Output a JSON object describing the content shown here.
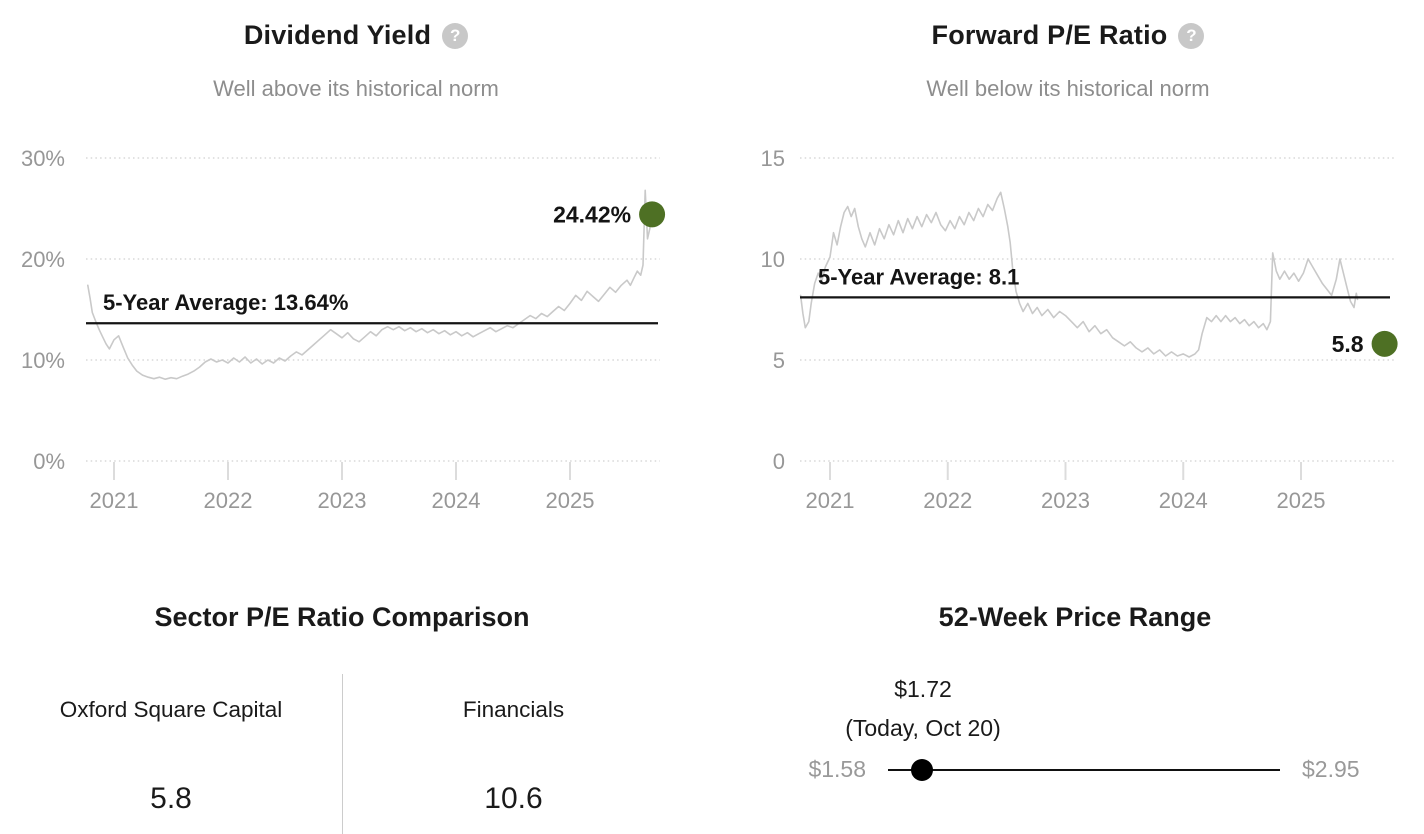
{
  "ui": {
    "help_glyph": "?"
  },
  "colors": {
    "accent_green": "#4e7024",
    "series_gray": "#c9c9c9",
    "axis_gray": "#979797",
    "average_line": "#141414"
  },
  "chart_data": [
    {
      "type": "line",
      "title": "Dividend Yield",
      "subtitle": "Well above its historical norm",
      "unit": "%",
      "x_ticks": [
        2021,
        2022,
        2023,
        2024,
        2025
      ],
      "y_ticks": [
        {
          "value": 30,
          "label": "30%"
        },
        {
          "value": 20,
          "label": "20%"
        },
        {
          "value": 10,
          "label": "10%"
        },
        {
          "value": 0,
          "label": "0%"
        }
      ],
      "y_range": [
        0,
        33
      ],
      "grid": true,
      "legend": "none",
      "average": {
        "value": 13.64,
        "label": "5-Year Average: 13.64%"
      },
      "current": {
        "x": 2025.72,
        "value": 24.42,
        "label": "24.42%"
      },
      "line_color": "#c9c9c9",
      "dot_color": "#4e7024",
      "series": [
        [
          2020.77,
          17.4
        ],
        [
          2020.79,
          16.1
        ],
        [
          2020.81,
          14.7
        ],
        [
          2020.84,
          13.8
        ],
        [
          2020.87,
          13.0
        ],
        [
          2020.9,
          12.3
        ],
        [
          2020.93,
          11.6
        ],
        [
          2020.96,
          11.1
        ],
        [
          2021.0,
          12.0
        ],
        [
          2021.04,
          12.4
        ],
        [
          2021.08,
          11.3
        ],
        [
          2021.12,
          10.2
        ],
        [
          2021.16,
          9.5
        ],
        [
          2021.2,
          8.9
        ],
        [
          2021.25,
          8.5
        ],
        [
          2021.3,
          8.3
        ],
        [
          2021.35,
          8.15
        ],
        [
          2021.4,
          8.3
        ],
        [
          2021.45,
          8.1
        ],
        [
          2021.5,
          8.25
        ],
        [
          2021.55,
          8.15
        ],
        [
          2021.6,
          8.4
        ],
        [
          2021.65,
          8.6
        ],
        [
          2021.7,
          8.9
        ],
        [
          2021.75,
          9.3
        ],
        [
          2021.8,
          9.8
        ],
        [
          2021.85,
          10.1
        ],
        [
          2021.9,
          9.8
        ],
        [
          2021.95,
          10.0
        ],
        [
          2022.0,
          9.7
        ],
        [
          2022.05,
          10.2
        ],
        [
          2022.1,
          9.8
        ],
        [
          2022.15,
          10.3
        ],
        [
          2022.2,
          9.7
        ],
        [
          2022.25,
          10.1
        ],
        [
          2022.3,
          9.6
        ],
        [
          2022.35,
          10.0
        ],
        [
          2022.4,
          9.7
        ],
        [
          2022.45,
          10.2
        ],
        [
          2022.5,
          9.9
        ],
        [
          2022.55,
          10.4
        ],
        [
          2022.6,
          10.8
        ],
        [
          2022.65,
          10.5
        ],
        [
          2022.7,
          11.0
        ],
        [
          2022.75,
          11.5
        ],
        [
          2022.8,
          12.0
        ],
        [
          2022.85,
          12.5
        ],
        [
          2022.9,
          13.0
        ],
        [
          2022.95,
          12.6
        ],
        [
          2023.0,
          12.2
        ],
        [
          2023.05,
          12.7
        ],
        [
          2023.1,
          12.1
        ],
        [
          2023.15,
          11.8
        ],
        [
          2023.2,
          12.3
        ],
        [
          2023.25,
          12.8
        ],
        [
          2023.3,
          12.4
        ],
        [
          2023.35,
          13.0
        ],
        [
          2023.4,
          13.3
        ],
        [
          2023.45,
          13.0
        ],
        [
          2023.5,
          13.3
        ],
        [
          2023.55,
          12.9
        ],
        [
          2023.6,
          13.2
        ],
        [
          2023.65,
          12.8
        ],
        [
          2023.7,
          13.1
        ],
        [
          2023.75,
          12.7
        ],
        [
          2023.8,
          13.0
        ],
        [
          2023.85,
          12.6
        ],
        [
          2023.9,
          12.9
        ],
        [
          2023.95,
          12.5
        ],
        [
          2024.0,
          12.8
        ],
        [
          2024.05,
          12.4
        ],
        [
          2024.1,
          12.7
        ],
        [
          2024.15,
          12.3
        ],
        [
          2024.2,
          12.6
        ],
        [
          2024.25,
          12.9
        ],
        [
          2024.3,
          13.2
        ],
        [
          2024.35,
          12.8
        ],
        [
          2024.4,
          13.1
        ],
        [
          2024.45,
          13.4
        ],
        [
          2024.5,
          13.2
        ],
        [
          2024.55,
          13.6
        ],
        [
          2024.6,
          14.0
        ],
        [
          2024.65,
          14.4
        ],
        [
          2024.7,
          14.1
        ],
        [
          2024.75,
          14.6
        ],
        [
          2024.8,
          14.3
        ],
        [
          2024.85,
          14.8
        ],
        [
          2024.9,
          15.3
        ],
        [
          2024.95,
          14.9
        ],
        [
          2025.0,
          15.6
        ],
        [
          2025.05,
          16.4
        ],
        [
          2025.1,
          15.9
        ],
        [
          2025.15,
          16.8
        ],
        [
          2025.2,
          16.3
        ],
        [
          2025.25,
          15.8
        ],
        [
          2025.3,
          16.5
        ],
        [
          2025.35,
          17.2
        ],
        [
          2025.4,
          16.7
        ],
        [
          2025.45,
          17.4
        ],
        [
          2025.5,
          17.9
        ],
        [
          2025.53,
          17.4
        ],
        [
          2025.56,
          18.1
        ],
        [
          2025.59,
          18.8
        ],
        [
          2025.62,
          18.4
        ],
        [
          2025.64,
          19.4
        ],
        [
          2025.66,
          26.8
        ],
        [
          2025.68,
          22.0
        ],
        [
          2025.7,
          23.0
        ],
        [
          2025.72,
          24.42
        ]
      ]
    },
    {
      "type": "line",
      "title": "Forward P/E Ratio",
      "subtitle": "Well below its historical norm",
      "unit": "",
      "x_ticks": [
        2021,
        2022,
        2023,
        2024,
        2025
      ],
      "y_ticks": [
        {
          "value": 15,
          "label": "15"
        },
        {
          "value": 10,
          "label": "10"
        },
        {
          "value": 5,
          "label": "5"
        },
        {
          "value": 0,
          "label": "0"
        }
      ],
      "y_range": [
        0,
        15
      ],
      "grid": true,
      "legend": "none",
      "average": {
        "value": 8.1,
        "label": "5-Year Average: 8.1"
      },
      "current": {
        "x": 2025.71,
        "value": 5.8,
        "label": "5.8"
      },
      "line_color": "#c9c9c9",
      "dot_color": "#4e7024",
      "series": [
        [
          2020.75,
          8.2
        ],
        [
          2020.77,
          7.3
        ],
        [
          2020.79,
          6.6
        ],
        [
          2020.82,
          6.9
        ],
        [
          2020.84,
          7.8
        ],
        [
          2020.87,
          8.8
        ],
        [
          2020.9,
          9.3
        ],
        [
          2020.93,
          8.9
        ],
        [
          2020.96,
          9.6
        ],
        [
          2021.0,
          10.1
        ],
        [
          2021.03,
          11.3
        ],
        [
          2021.06,
          10.7
        ],
        [
          2021.09,
          11.6
        ],
        [
          2021.12,
          12.3
        ],
        [
          2021.15,
          12.6
        ],
        [
          2021.18,
          12.1
        ],
        [
          2021.21,
          12.5
        ],
        [
          2021.24,
          11.6
        ],
        [
          2021.27,
          11.0
        ],
        [
          2021.3,
          10.6
        ],
        [
          2021.34,
          11.3
        ],
        [
          2021.38,
          10.7
        ],
        [
          2021.42,
          11.5
        ],
        [
          2021.46,
          11.0
        ],
        [
          2021.5,
          11.7
        ],
        [
          2021.54,
          11.2
        ],
        [
          2021.58,
          11.9
        ],
        [
          2021.62,
          11.3
        ],
        [
          2021.66,
          12.0
        ],
        [
          2021.7,
          11.5
        ],
        [
          2021.74,
          12.1
        ],
        [
          2021.78,
          11.6
        ],
        [
          2021.82,
          12.2
        ],
        [
          2021.86,
          11.8
        ],
        [
          2021.9,
          12.3
        ],
        [
          2021.94,
          11.7
        ],
        [
          2021.98,
          11.4
        ],
        [
          2022.02,
          11.9
        ],
        [
          2022.06,
          11.5
        ],
        [
          2022.1,
          12.1
        ],
        [
          2022.14,
          11.7
        ],
        [
          2022.18,
          12.3
        ],
        [
          2022.22,
          11.9
        ],
        [
          2022.26,
          12.5
        ],
        [
          2022.3,
          12.1
        ],
        [
          2022.34,
          12.7
        ],
        [
          2022.38,
          12.4
        ],
        [
          2022.42,
          13.0
        ],
        [
          2022.45,
          13.3
        ],
        [
          2022.48,
          12.5
        ],
        [
          2022.51,
          11.6
        ],
        [
          2022.53,
          10.8
        ],
        [
          2022.55,
          9.6
        ],
        [
          2022.58,
          8.4
        ],
        [
          2022.61,
          7.8
        ],
        [
          2022.64,
          7.4
        ],
        [
          2022.68,
          7.8
        ],
        [
          2022.72,
          7.3
        ],
        [
          2022.76,
          7.6
        ],
        [
          2022.8,
          7.2
        ],
        [
          2022.85,
          7.5
        ],
        [
          2022.9,
          7.1
        ],
        [
          2022.95,
          7.4
        ],
        [
          2023.0,
          7.2
        ],
        [
          2023.05,
          6.9
        ],
        [
          2023.1,
          6.6
        ],
        [
          2023.15,
          6.9
        ],
        [
          2023.2,
          6.4
        ],
        [
          2023.25,
          6.7
        ],
        [
          2023.3,
          6.3
        ],
        [
          2023.35,
          6.5
        ],
        [
          2023.4,
          6.1
        ],
        [
          2023.45,
          5.9
        ],
        [
          2023.5,
          5.7
        ],
        [
          2023.55,
          5.9
        ],
        [
          2023.6,
          5.6
        ],
        [
          2023.65,
          5.4
        ],
        [
          2023.7,
          5.6
        ],
        [
          2023.75,
          5.3
        ],
        [
          2023.8,
          5.5
        ],
        [
          2023.85,
          5.2
        ],
        [
          2023.9,
          5.4
        ],
        [
          2023.95,
          5.2
        ],
        [
          2024.0,
          5.3
        ],
        [
          2024.05,
          5.15
        ],
        [
          2024.1,
          5.3
        ],
        [
          2024.13,
          5.5
        ],
        [
          2024.16,
          6.3
        ],
        [
          2024.2,
          7.1
        ],
        [
          2024.24,
          6.9
        ],
        [
          2024.28,
          7.2
        ],
        [
          2024.32,
          6.9
        ],
        [
          2024.36,
          7.2
        ],
        [
          2024.4,
          6.9
        ],
        [
          2024.44,
          7.1
        ],
        [
          2024.48,
          6.8
        ],
        [
          2024.52,
          7.0
        ],
        [
          2024.56,
          6.7
        ],
        [
          2024.6,
          6.9
        ],
        [
          2024.64,
          6.6
        ],
        [
          2024.68,
          6.8
        ],
        [
          2024.71,
          6.5
        ],
        [
          2024.74,
          6.9
        ],
        [
          2024.76,
          10.3
        ],
        [
          2024.79,
          9.4
        ],
        [
          2024.82,
          9.0
        ],
        [
          2024.86,
          9.4
        ],
        [
          2024.9,
          9.0
        ],
        [
          2024.94,
          9.3
        ],
        [
          2024.98,
          8.9
        ],
        [
          2025.02,
          9.3
        ],
        [
          2025.06,
          10.0
        ],
        [
          2025.1,
          9.6
        ],
        [
          2025.14,
          9.2
        ],
        [
          2025.18,
          8.8
        ],
        [
          2025.22,
          8.5
        ],
        [
          2025.26,
          8.2
        ],
        [
          2025.3,
          9.0
        ],
        [
          2025.33,
          10.0
        ],
        [
          2025.36,
          9.3
        ],
        [
          2025.39,
          8.6
        ],
        [
          2025.42,
          7.9
        ],
        [
          2025.45,
          7.6
        ],
        [
          2025.47,
          8.3
        ],
        [
          2025.48,
          8.0
        ]
      ]
    },
    {
      "type": "table",
      "title": "Sector P/E Ratio Comparison",
      "columns": [
        "Oxford Square Capital",
        "Financials"
      ],
      "values": [
        "5.8",
        "10.6"
      ]
    }
  ],
  "price_range": {
    "title": "52-Week Price Range",
    "current_price": "$1.72",
    "current_label": "(Today, Oct 20)",
    "low": "$1.58",
    "high": "$2.95",
    "position_fraction": 0.09
  }
}
